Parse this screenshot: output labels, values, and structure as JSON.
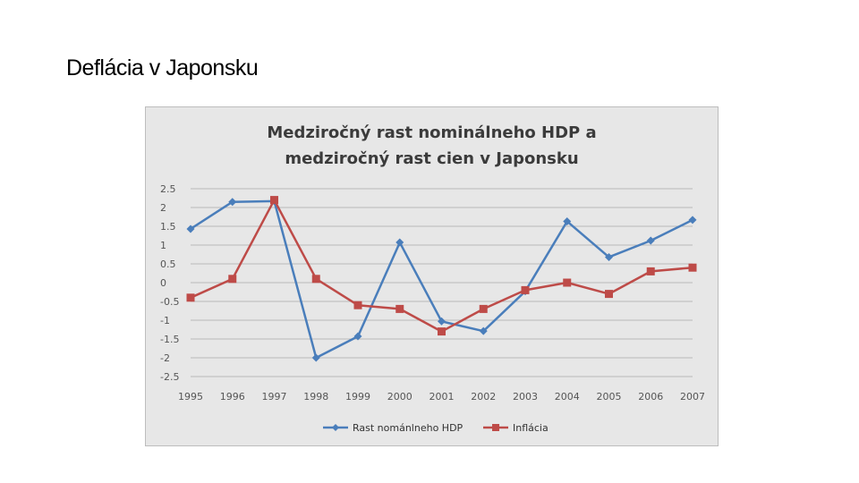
{
  "slide": {
    "title": "Deflácia v Japonsku"
  },
  "chart_data": {
    "type": "line",
    "title_lines": [
      "Medziročný rast nominálneho HDP a",
      "medziročný rast cien v Japonsku"
    ],
    "categories": [
      "1995",
      "1996",
      "1997",
      "1998",
      "1999",
      "2000",
      "2001",
      "2002",
      "2003",
      "2004",
      "2005",
      "2006",
      "2007"
    ],
    "yticks": [
      "2.5",
      "2",
      "1.5",
      "1",
      "0.5",
      "0",
      "-0.5",
      "-1",
      "-1.5",
      "-2",
      "-2.5"
    ],
    "ylim": [
      -2.5,
      2.5
    ],
    "grid": true,
    "legend_position": "bottom",
    "series": [
      {
        "name": "Rast nománlneho HDP",
        "color": "#4a7ebb",
        "marker": "diamond",
        "values": [
          1.43,
          2.15,
          2.17,
          -2.0,
          -1.43,
          1.07,
          -1.03,
          -1.29,
          -0.23,
          1.63,
          0.68,
          1.12,
          1.67
        ]
      },
      {
        "name": "Inflácia",
        "color": "#be4b48",
        "marker": "square",
        "values": [
          -0.4,
          0.1,
          2.2,
          0.1,
          -0.6,
          -0.7,
          -1.3,
          -0.7,
          -0.2,
          0.0,
          -0.3,
          0.3,
          0.4
        ]
      }
    ]
  }
}
